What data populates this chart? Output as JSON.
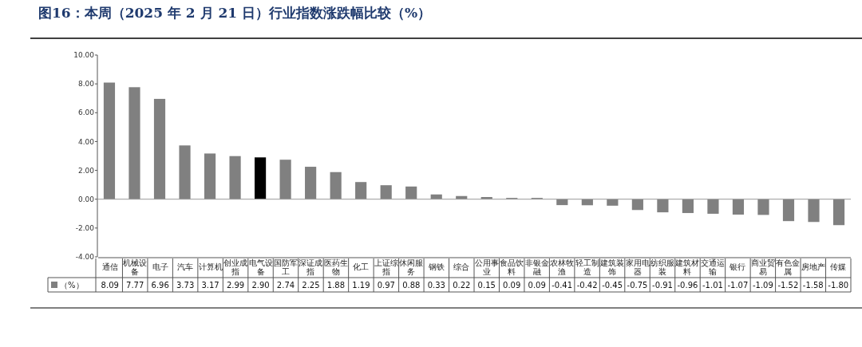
{
  "chart_data": {
    "type": "bar",
    "title": "图16：本周（2025 年 2 月 21 日）行业指数涨跌幅比较（%）",
    "categories": [
      "通信",
      "机械设备",
      "电子",
      "汽车",
      "计算机",
      "创业成指",
      "电气设备",
      "国防军工",
      "深证成指",
      "医药生物",
      "化工",
      "上证综指",
      "休闲服务",
      "钢铁",
      "综合",
      "公用事业",
      "食品饮料",
      "非银金融",
      "农林牧渔",
      "轻工制造",
      "建筑装饰",
      "家用电器",
      "纺织服装",
      "建筑材料",
      "交通运输",
      "银行",
      "商业贸易",
      "有色金属",
      "房地产",
      "传媒"
    ],
    "series": [
      {
        "name": "（%）",
        "color": "#808080",
        "colors": [
          "#808080",
          "#808080",
          "#808080",
          "#808080",
          "#808080",
          "#808080",
          "#000000",
          "#808080",
          "#808080",
          "#808080",
          "#808080",
          "#808080",
          "#808080",
          "#808080",
          "#808080",
          "#808080",
          "#808080",
          "#808080",
          "#808080",
          "#808080",
          "#808080",
          "#808080",
          "#808080",
          "#808080",
          "#808080",
          "#808080",
          "#808080",
          "#808080",
          "#808080",
          "#808080"
        ],
        "values": [
          8.09,
          7.77,
          6.96,
          3.73,
          3.17,
          2.99,
          2.9,
          2.74,
          2.25,
          1.88,
          1.19,
          0.97,
          0.88,
          0.33,
          0.22,
          0.15,
          0.09,
          0.09,
          -0.41,
          -0.42,
          -0.45,
          -0.75,
          -0.91,
          -0.96,
          -1.01,
          -1.07,
          -1.09,
          -1.52,
          -1.58,
          -1.8
        ],
        "value_labels": [
          "8.09",
          "7.77",
          "6.96",
          "3.73",
          "3.17",
          "2.99",
          "2.90",
          "2.74",
          "2.25",
          "1.88",
          "1.19",
          "0.97",
          "0.88",
          "0.33",
          "0.22",
          "0.15",
          "0.09",
          "0.09",
          "-0.41",
          "-0.42",
          "-0.45",
          "-0.75",
          "-0.91",
          "-0.96",
          "-1.01",
          "-1.07",
          "-1.09",
          "-1.52",
          "-1.58",
          "-1.80"
        ]
      }
    ],
    "ylim": [
      -4,
      10
    ],
    "yticks": [
      {
        "value": -4,
        "label": "-4.00"
      },
      {
        "value": -2,
        "label": "-2.00"
      },
      {
        "value": 0,
        "label": "0.00"
      },
      {
        "value": 2,
        "label": "2.00"
      },
      {
        "value": 4,
        "label": "4.00"
      },
      {
        "value": 6,
        "label": "6.00"
      },
      {
        "value": 8,
        "label": "8.00"
      },
      {
        "value": 10,
        "label": "10.00"
      }
    ],
    "legend": "bottom"
  }
}
